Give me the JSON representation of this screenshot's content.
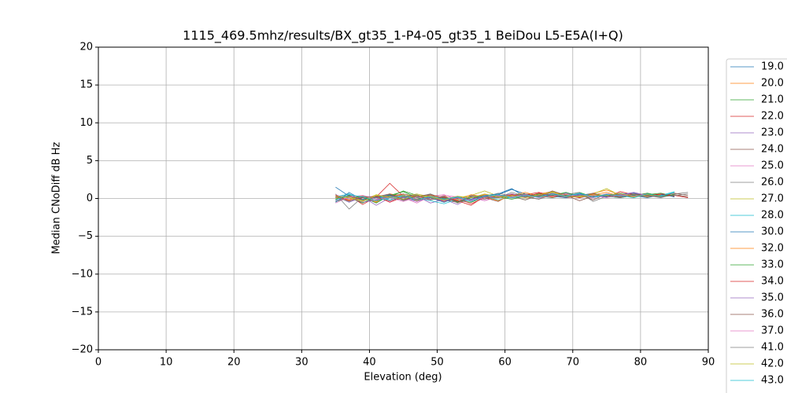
{
  "chart_data": {
    "type": "line",
    "title": "1115_469.5mhz/results/BX_gt35_1-P4-05_gt35_1 BeiDou L5-E5A(I+Q)",
    "xlabel": "Elevation (deg)",
    "ylabel": "Median CNoDiff dB Hz",
    "xlim": [
      0,
      90
    ],
    "ylim": [
      -20,
      20
    ],
    "xticks": [
      0,
      10,
      20,
      30,
      40,
      50,
      60,
      70,
      80,
      90
    ],
    "yticks": [
      {
        "value": -20,
        "label": "−20"
      },
      {
        "value": -15,
        "label": "−15"
      },
      {
        "value": -10,
        "label": "−10"
      },
      {
        "value": -5,
        "label": "−5"
      },
      0,
      5,
      10,
      15,
      20
    ],
    "grid": true,
    "legend": "right",
    "x": [
      35,
      37,
      39,
      41,
      43,
      45,
      47,
      49,
      51,
      53,
      55,
      57,
      59,
      61,
      63,
      65,
      67,
      69,
      71,
      73,
      75,
      77,
      79,
      81,
      83,
      85,
      87
    ],
    "series": [
      {
        "name": "19.0",
        "color": "#1f77b4",
        "values": [
          1.5,
          0.3,
          -0.2,
          0.1,
          0.4,
          0.2,
          -0.3,
          0.1,
          0,
          -0.4,
          -0.2,
          0.3,
          0.5,
          1.2,
          0.6,
          0.2,
          0.4,
          0.8,
          0.3,
          0.1,
          0.5,
          0.4,
          0.7,
          0.3,
          0.6,
          0.2,
          null
        ]
      },
      {
        "name": "20.0",
        "color": "#ff7f0e",
        "values": [
          0.2,
          -0.3,
          0.1,
          -0.5,
          0.6,
          0.3,
          0.2,
          -0.1,
          0.4,
          -0.6,
          0.1,
          0.5,
          0.2,
          0.3,
          -0.2,
          0.6,
          0.9,
          0.4,
          0.2,
          0.7,
          1.1,
          0.5,
          0.3,
          0.6,
          0.4,
          null,
          null
        ]
      },
      {
        "name": "21.0",
        "color": "#2ca02c",
        "values": [
          -0.4,
          0.1,
          -0.6,
          0.3,
          0.2,
          1.0,
          0.4,
          -0.2,
          0.1,
          -0.3,
          -0.5,
          0.2,
          0.1,
          0.4,
          0.6,
          0.3,
          0.1,
          0.5,
          0.8,
          0.2,
          0.4,
          0.6,
          0.3,
          0.5,
          0.7,
          0.3,
          null
        ]
      },
      {
        "name": "22.0",
        "color": "#d62728",
        "values": [
          0.1,
          0.4,
          -0.8,
          0.2,
          2.0,
          0.3,
          -0.1,
          0.2,
          -0.4,
          0,
          -0.7,
          0.1,
          0.3,
          0.2,
          0.5,
          0.8,
          0.4,
          0.1,
          0.3,
          0.6,
          0.2,
          0.9,
          0.5,
          0.2,
          0.6,
          0.4,
          0.1
        ]
      },
      {
        "name": "23.0",
        "color": "#9467bd",
        "values": [
          0.3,
          -0.5,
          0.2,
          -0.9,
          0.1,
          -0.2,
          0.3,
          -0.6,
          -0.1,
          -0.8,
          0.2,
          -0.3,
          0.4,
          0.1,
          0.2,
          0.5,
          0.3,
          0.7,
          0.1,
          0.4,
          0.3,
          0.5,
          0.8,
          0.2,
          0.4,
          null,
          null
        ]
      },
      {
        "name": "24.0",
        "color": "#8c564b",
        "values": [
          -0.2,
          0.5,
          0.1,
          -0.3,
          0.3,
          0.6,
          0.2,
          0.4,
          -0.2,
          -0.5,
          0.3,
          0.1,
          -0.4,
          0.6,
          0.2,
          -0.1,
          0.7,
          0.3,
          0.5,
          -0.2,
          0.6,
          0.4,
          0.2,
          0.7,
          0.3,
          0.5,
          0.2
        ]
      },
      {
        "name": "25.0",
        "color": "#e377c2",
        "values": [
          0.5,
          -0.1,
          0.3,
          0.2,
          -0.4,
          0.1,
          -0.6,
          0.3,
          0.5,
          -0.2,
          0.1,
          -0.3,
          0.2,
          0.5,
          0.1,
          0.4,
          0.2,
          0.6,
          0.3,
          0.1,
          0.5,
          0.2,
          0.4,
          0.6,
          null,
          null,
          null
        ]
      },
      {
        "name": "26.0",
        "color": "#7f7f7f",
        "values": [
          0.6,
          -1.4,
          0.2,
          -0.1,
          0.4,
          -0.3,
          0.2,
          0.6,
          -0.1,
          0.3,
          -0.4,
          0.2,
          0.7,
          0.3,
          -0.2,
          0.4,
          0.1,
          0.5,
          0.8,
          -0.4,
          0.3,
          0.6,
          0.2,
          0.4,
          0.1,
          0.6,
          0.8
        ]
      },
      {
        "name": "27.0",
        "color": "#bcbd22",
        "values": [
          0,
          0.2,
          -0.3,
          0.5,
          0.1,
          0.3,
          0.6,
          0.2,
          -0.2,
          0.1,
          0.4,
          1.0,
          0.3,
          0.1,
          0.4,
          0.2,
          0.9,
          0.5,
          0.3,
          0.6,
          1.3,
          0.4,
          0.2,
          0.5,
          0.3,
          null,
          null
        ]
      },
      {
        "name": "28.0",
        "color": "#17becf",
        "values": [
          0.2,
          0.6,
          -0.1,
          0.3,
          -0.2,
          0.4,
          0.1,
          -0.3,
          -0.7,
          -0.1,
          0.2,
          0.3,
          -0.2,
          0.2,
          0.5,
          0.1,
          0.3,
          0.4,
          0.6,
          0.2,
          0.3,
          0.1,
          0.5,
          0.2,
          0.4,
          0.9,
          null
        ]
      },
      {
        "name": "30.0",
        "color": "#1f77b4",
        "values": [
          -0.5,
          0.8,
          -0.2,
          0.1,
          0.5,
          -0.1,
          0.3,
          0.1,
          -0.5,
          0.2,
          -0.1,
          0.4,
          0.6,
          1.3,
          0.2,
          0.5,
          0.3,
          0.1,
          0.6,
          0.4,
          0.2,
          0.7,
          0.4,
          0.1,
          0.5,
          0.3,
          null
        ]
      },
      {
        "name": "32.0",
        "color": "#ff7f0e",
        "values": [
          0.3,
          -0.2,
          0.4,
          -0.4,
          0.2,
          0.5,
          -0.3,
          0.4,
          0.1,
          -0.2,
          0.5,
          0.2,
          -0.3,
          0.4,
          0.8,
          0.3,
          0.2,
          0.6,
          0.1,
          0.5,
          0.8,
          0.3,
          0.6,
          0.2,
          0.5,
          null,
          null
        ]
      },
      {
        "name": "33.0",
        "color": "#2ca02c",
        "values": [
          -0.1,
          0.3,
          0.2,
          -0.6,
          0.4,
          0.9,
          0.1,
          -0.2,
          0.3,
          -0.5,
          0.1,
          0.4,
          0.2,
          -0.1,
          0.3,
          0.6,
          0.4,
          0.8,
          0.2,
          0.3,
          0.5,
          0.1,
          0.4,
          0.7,
          0.3,
          0.5,
          null
        ]
      },
      {
        "name": "34.0",
        "color": "#d62728",
        "values": [
          0.4,
          -0.3,
          0.1,
          0.3,
          -0.5,
          0.2,
          0.4,
          -0.1,
          0.2,
          -0.3,
          -0.9,
          0.3,
          0.1,
          0.5,
          0.2,
          0.7,
          0.3,
          0.4,
          0.1,
          0.6,
          0.3,
          0.5,
          0.2,
          0.4,
          0.6,
          0.3,
          null
        ]
      },
      {
        "name": "35.0",
        "color": "#9467bd",
        "values": [
          -0.3,
          0.1,
          -0.5,
          -0.2,
          0.3,
          0.1,
          -0.4,
          0.2,
          -0.3,
          0.1,
          -0.2,
          0.4,
          0.3,
          0.6,
          0.2,
          0.4,
          0.7,
          0.3,
          0.5,
          0.2,
          0.6,
          0.3,
          0.8,
          0.4,
          0.2,
          null,
          null
        ]
      },
      {
        "name": "36.0",
        "color": "#8c564b",
        "values": [
          0.1,
          0.4,
          -0.2,
          0.2,
          0.6,
          -0.2,
          0.3,
          0.5,
          0.1,
          -0.4,
          0.2,
          -0.1,
          0.5,
          0.2,
          0.6,
          0.3,
          1.0,
          0.4,
          -0.3,
          0.3,
          0.5,
          0.2,
          0.6,
          0.4,
          0.3,
          0.7,
          0.4
        ]
      },
      {
        "name": "37.0",
        "color": "#e377c2",
        "values": [
          -0.6,
          0.2,
          0.4,
          -0.1,
          0.1,
          -0.4,
          0.2,
          -0.2,
          0.4,
          0.2,
          -0.3,
          0.1,
          0.4,
          0.2,
          0.5,
          0.1,
          0.3,
          0.6,
          0.2,
          0.4,
          0.1,
          0.5,
          0.3,
          0.6,
          null,
          null,
          null
        ]
      },
      {
        "name": "41.0",
        "color": "#7f7f7f",
        "values": [
          0.2,
          -0.4,
          0.3,
          0.1,
          -0.3,
          0.2,
          0.5,
          -0.1,
          0.3,
          -0.6,
          0.4,
          0.2,
          0.1,
          0.8,
          0.3,
          -0.1,
          0.5,
          0.2,
          0.4,
          0.7,
          0.3,
          0.1,
          0.5,
          0.3,
          0.2,
          0.4,
          0.6
        ]
      },
      {
        "name": "42.0",
        "color": "#bcbd22",
        "values": [
          0.3,
          0.1,
          -0.4,
          0.4,
          0.2,
          -0.1,
          0.4,
          0.2,
          -0.2,
          0.3,
          0.1,
          0.6,
          0.2,
          0.4,
          0.1,
          0.5,
          0.8,
          0.3,
          0.2,
          0.5,
          0.4,
          0.7,
          0.2,
          0.5,
          0.3,
          null,
          null
        ]
      },
      {
        "name": "43.0",
        "color": "#17becf",
        "values": [
          -0.2,
          0.5,
          0.2,
          -0.3,
          0.1,
          0.4,
          -0.2,
          0.3,
          -0.1,
          0.2,
          -0.4,
          0.3,
          0.5,
          0.1,
          0.4,
          0.2,
          0.6,
          0.3,
          0.7,
          0.2,
          0.5,
          0.4,
          0.1,
          0.6,
          0.3,
          0.8,
          null
        ]
      }
    ]
  }
}
